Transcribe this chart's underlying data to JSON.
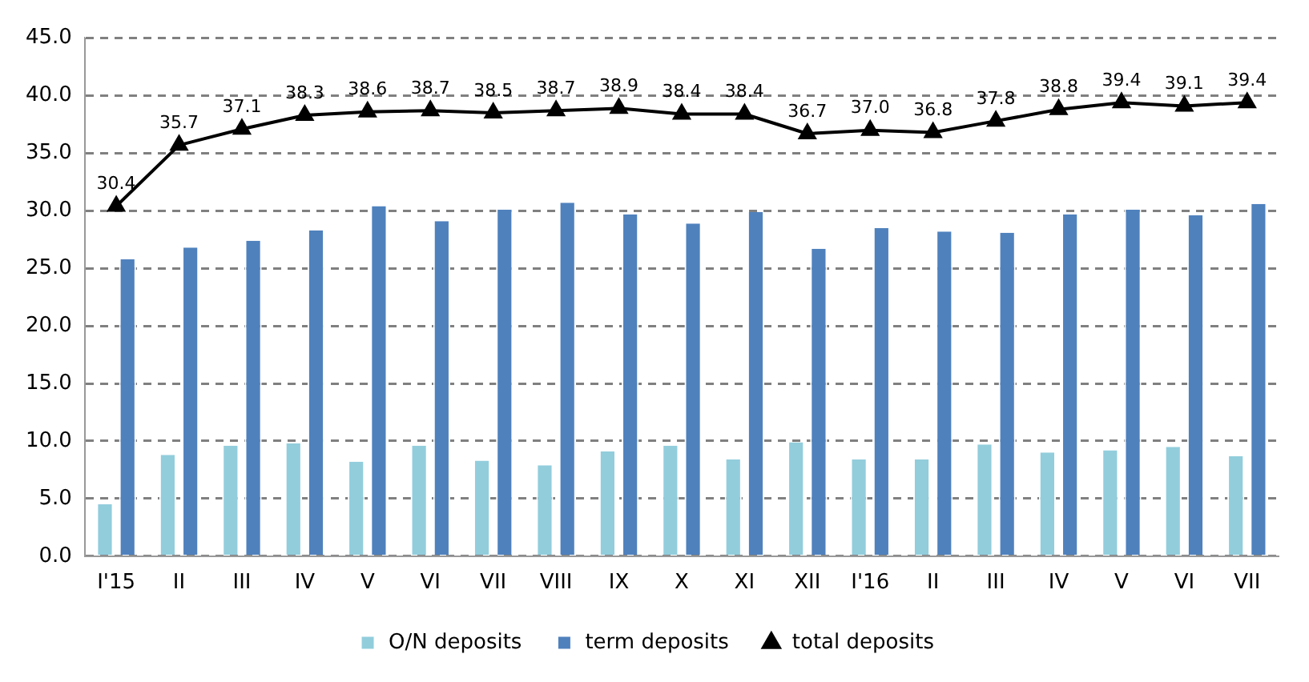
{
  "chart_data": {
    "type": "bar",
    "categories": [
      "I'15",
      "II",
      "III",
      "IV",
      "V",
      "VI",
      "VII",
      "VIII",
      "IX",
      "X",
      "XI",
      "XII",
      "I'16",
      "II",
      "III",
      "IV",
      "V",
      "VI",
      "VII"
    ],
    "series": [
      {
        "name": "O/N deposits",
        "color": "#92cddc",
        "values": [
          4.5,
          8.8,
          9.6,
          9.8,
          8.2,
          9.6,
          8.3,
          7.9,
          9.1,
          9.6,
          8.4,
          9.9,
          8.4,
          8.4,
          9.7,
          9.0,
          9.2,
          9.5,
          8.7
        ]
      },
      {
        "name": "term deposits",
        "color": "#4f81bd",
        "values": [
          25.8,
          26.8,
          27.4,
          28.3,
          30.4,
          29.1,
          30.1,
          30.7,
          29.7,
          28.9,
          29.9,
          26.7,
          28.5,
          28.2,
          28.1,
          29.7,
          30.1,
          29.6,
          30.6
        ]
      },
      {
        "name": "total deposits",
        "type": "line",
        "color": "#000000",
        "marker": "triangle",
        "values": [
          30.4,
          35.7,
          37.1,
          38.3,
          38.6,
          38.7,
          38.5,
          38.7,
          38.9,
          38.4,
          38.4,
          36.7,
          37.0,
          36.8,
          37.8,
          38.8,
          39.4,
          39.1,
          39.4
        ],
        "value_labels": [
          "30.4",
          "35.7",
          "37.1",
          "38.3",
          "38.6",
          "38.7",
          "38.5",
          "38.7",
          "38.9",
          "38.4",
          "38.4",
          "36.7",
          "37.0",
          "36.8",
          "37.8",
          "38.8",
          "39.4",
          "39.1",
          "39.4"
        ]
      }
    ],
    "ylim": [
      0,
      45
    ],
    "yticks": [
      {
        "value": 0,
        "label": "0.0"
      },
      {
        "value": 5,
        "label": "5.0"
      },
      {
        "value": 10,
        "label": "10.0"
      },
      {
        "value": 15,
        "label": "15.0"
      },
      {
        "value": 20,
        "label": "20.0"
      },
      {
        "value": 25,
        "label": "25.0"
      },
      {
        "value": 30,
        "label": "30.0"
      },
      {
        "value": 35,
        "label": "35.0"
      },
      {
        "value": 40,
        "label": "40.0"
      },
      {
        "value": 45,
        "label": "45.0"
      }
    ],
    "grid": "y",
    "legend": "bottom"
  }
}
